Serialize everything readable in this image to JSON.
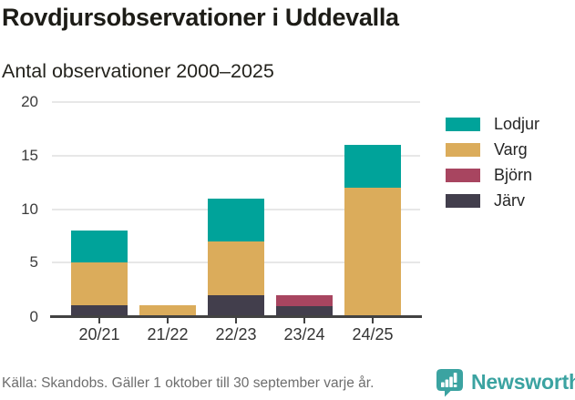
{
  "header": {
    "title": "Rovdjursobservationer i Uddevalla",
    "subtitle": "Antal observationer 2000–2025"
  },
  "chart_data": {
    "type": "bar",
    "stacked": true,
    "title": "Rovdjursobservationer i Uddevalla",
    "subtitle": "Antal observationer 2000–2025",
    "categories": [
      "20/21",
      "21/22",
      "22/23",
      "23/24",
      "24/25"
    ],
    "series": [
      {
        "name": "Lodjur",
        "color": "#00a39a",
        "values": [
          3,
          0,
          4,
          0,
          4
        ]
      },
      {
        "name": "Varg",
        "color": "#dbac5b",
        "values": [
          4,
          1,
          5,
          0,
          12
        ]
      },
      {
        "name": "Björn",
        "color": "#a84560",
        "values": [
          0,
          0,
          0,
          1,
          0
        ]
      },
      {
        "name": "Järv",
        "color": "#423e4c",
        "values": [
          1,
          0,
          2,
          1,
          0
        ]
      }
    ],
    "stack_order_bottom_to_top": [
      "Järv",
      "Björn",
      "Varg",
      "Lodjur"
    ],
    "totals": [
      8,
      1,
      11,
      2,
      16
    ],
    "ylim": [
      0,
      20
    ],
    "yticks": [
      0,
      5,
      10,
      15,
      20
    ],
    "grid": true,
    "grid_color": "#e7e7e7",
    "axis_color": "#424242",
    "legend_position": "right"
  },
  "footer": {
    "source": "Källa: Skandobs. Gäller 1 oktober till 30 september varje år.",
    "brand": "Newsworthy",
    "brand_color": "#3ba3a1"
  }
}
